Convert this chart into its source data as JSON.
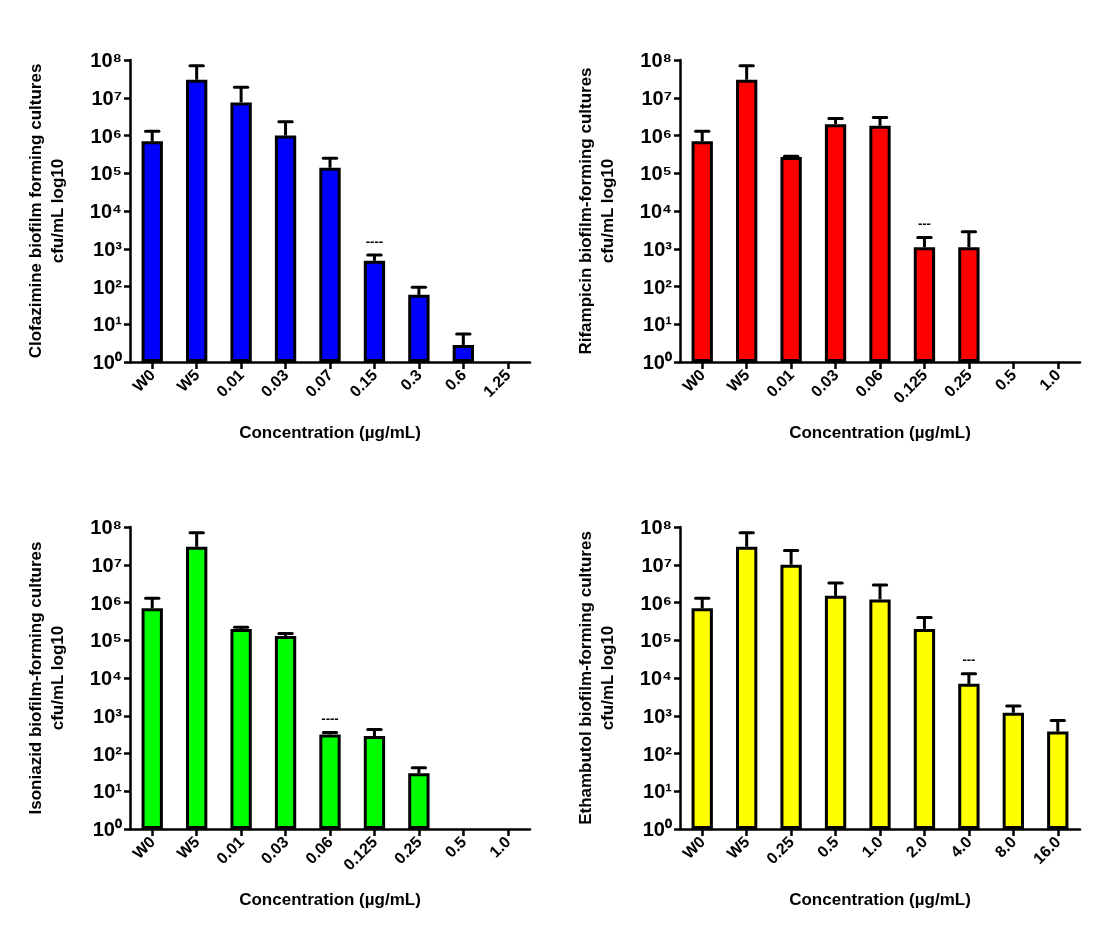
{
  "chart_data": [
    {
      "type": "bar",
      "ylabel": "Clofazimine biofilm forming cultures\ncfu/mL log10",
      "xlabel": "Concentration (µg/mL)",
      "categories": [
        "W0",
        "W5",
        "0.01",
        "0.03",
        "0.07",
        "0.15",
        "0.3",
        "0.6",
        "1.25"
      ],
      "series": [
        {
          "color": "#0000ff",
          "values": [
            700000,
            30000000,
            7500000,
            1000000,
            140000,
            480,
            60,
            2.8,
            null
          ],
          "errors": [
            [
              700000,
              1300000
            ],
            [
              30000000,
              70000000
            ],
            [
              7500000,
              19000000
            ],
            [
              1000000,
              2300000
            ],
            [
              140000,
              250000
            ],
            [
              480,
              680
            ],
            [
              60,
              95
            ],
            [
              2.8,
              5.5
            ],
            null
          ]
        }
      ],
      "log": "y",
      "ylim": [
        1,
        100000000
      ],
      "yticks": [
        {
          "value": 1,
          "label": "10⁰"
        },
        {
          "value": 10,
          "label": "10¹"
        },
        {
          "value": 100,
          "label": "10²"
        },
        {
          "value": 1000,
          "label": "10³"
        },
        {
          "value": 10000,
          "label": "10⁴"
        },
        {
          "value": 100000,
          "label": "10⁵"
        },
        {
          "value": 1000000,
          "label": "10⁶"
        },
        {
          "value": 10000000,
          "label": "10⁷"
        },
        {
          "value": 100000000,
          "label": "10⁸"
        }
      ],
      "annotations": [
        {
          "text": "----",
          "x": "0.15",
          "y": 480
        }
      ],
      "grid": false
    },
    {
      "type": "bar",
      "ylabel": "Rifampicin biofilm-forming cultures\ncfu/mL log10",
      "xlabel": "Concentration (µg/mL)",
      "categories": [
        "W0",
        "W5",
        "0.01",
        "0.03",
        "0.06",
        "0.125",
        "0.25",
        "0.5",
        "1.0"
      ],
      "series": [
        {
          "color": "#ff0000",
          "values": [
            700000,
            30000000,
            270000,
            2000000,
            1800000,
            1100,
            1100,
            null,
            null
          ],
          "errors": [
            [
              700000,
              1300000
            ],
            [
              30000000,
              70000000
            ],
            [
              270000,
              280000
            ],
            [
              2000000,
              2800000
            ],
            [
              1800000,
              3000000
            ],
            [
              1100,
              2000
            ],
            [
              1100,
              2800
            ],
            null,
            null
          ]
        }
      ],
      "log": "y",
      "ylim": [
        1,
        100000000
      ],
      "yticks": [
        {
          "value": 1,
          "label": "10⁰"
        },
        {
          "value": 10,
          "label": "10¹"
        },
        {
          "value": 100,
          "label": "10²"
        },
        {
          "value": 1000,
          "label": "10³"
        },
        {
          "value": 10000,
          "label": "10⁴"
        },
        {
          "value": 100000,
          "label": "10⁵"
        },
        {
          "value": 1000000,
          "label": "10⁶"
        },
        {
          "value": 10000000,
          "label": "10⁷"
        },
        {
          "value": 100000000,
          "label": "10⁸"
        }
      ],
      "annotations": [
        {
          "text": "---",
          "x": "0.125",
          "y": 1100
        }
      ],
      "grid": false
    },
    {
      "type": "bar",
      "ylabel": "Isoniazid biofilm-forming cultures\ncfu/mL log10",
      "xlabel": "Concentration (µg/mL)",
      "categories": [
        "W0",
        "W5",
        "0.01",
        "0.03",
        "0.06",
        "0.125",
        "0.25",
        "0.5",
        "1.0"
      ],
      "series": [
        {
          "color": "#00ff00",
          "values": [
            700000,
            30000000,
            200000,
            130000,
            320,
            290,
            30,
            null,
            null
          ],
          "errors": [
            [
              700000,
              1300000
            ],
            [
              30000000,
              70000000
            ],
            [
              200000,
              220000
            ],
            [
              130000,
              150000
            ],
            [
              320,
              360
            ],
            [
              290,
              430
            ],
            [
              30,
              42
            ],
            null,
            null
          ]
        }
      ],
      "log": "y",
      "ylim": [
        1,
        100000000
      ],
      "yticks": [
        {
          "value": 1,
          "label": "10⁰"
        },
        {
          "value": 10,
          "label": "10¹"
        },
        {
          "value": 100,
          "label": "10²"
        },
        {
          "value": 1000,
          "label": "10³"
        },
        {
          "value": 10000,
          "label": "10⁴"
        },
        {
          "value": 100000,
          "label": "10⁵"
        },
        {
          "value": 1000000,
          "label": "10⁶"
        },
        {
          "value": 10000000,
          "label": "10⁷"
        },
        {
          "value": 100000000,
          "label": "10⁸"
        }
      ],
      "annotations": [
        {
          "text": "----",
          "x": "0.06",
          "y": 320
        }
      ],
      "grid": false
    },
    {
      "type": "bar",
      "ylabel": "Ethambutol biofilm-forming cultures\ncfu/mL log10",
      "xlabel": "Concentration (µg/mL)",
      "categories": [
        "W0",
        "W5",
        "0.25",
        "0.5",
        "1.0",
        "2.0",
        "4.0",
        "8.0",
        "16.0"
      ],
      "series": [
        {
          "color": "#ffff00",
          "values": [
            700000,
            30000000,
            10000000,
            1500000,
            1200000,
            200000,
            7000,
            1200,
            380
          ],
          "errors": [
            [
              700000,
              1300000
            ],
            [
              30000000,
              70000000
            ],
            [
              10000000,
              24000000
            ],
            [
              1500000,
              3300000
            ],
            [
              1200000,
              2900000
            ],
            [
              200000,
              400000
            ],
            [
              7000,
              13000
            ],
            [
              1200,
              1800
            ],
            [
              380,
              750
            ]
          ]
        }
      ],
      "log": "y",
      "ylim": [
        1,
        100000000
      ],
      "yticks": [
        {
          "value": 1,
          "label": "10⁰"
        },
        {
          "value": 10,
          "label": "10¹"
        },
        {
          "value": 100,
          "label": "10²"
        },
        {
          "value": 1000,
          "label": "10³"
        },
        {
          "value": 10000,
          "label": "10⁴"
        },
        {
          "value": 100000,
          "label": "10⁵"
        },
        {
          "value": 1000000,
          "label": "10⁶"
        },
        {
          "value": 10000000,
          "label": "10⁷"
        },
        {
          "value": 100000000,
          "label": "10⁸"
        }
      ],
      "annotations": [
        {
          "text": "---",
          "x": "4.0",
          "y": 7000
        }
      ],
      "grid": false
    }
  ]
}
